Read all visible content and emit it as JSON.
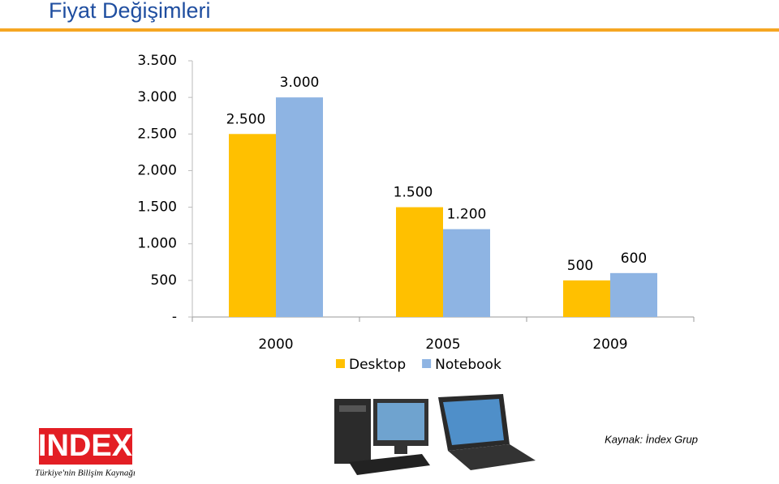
{
  "chart_data": {
    "type": "bar",
    "title": "Fiyat Değişimleri",
    "categories": [
      "2000",
      "2005",
      "2009"
    ],
    "series": [
      {
        "name": "Desktop",
        "color": "#ffc000",
        "values": [
          2500,
          1500,
          500
        ],
        "value_labels": [
          "2.500",
          "1.500",
          "500"
        ]
      },
      {
        "name": "Notebook",
        "color": "#8eb4e3",
        "values": [
          3000,
          1200,
          600
        ],
        "value_labels": [
          "3.000",
          "1.200",
          "600"
        ]
      }
    ],
    "ylim": [
      0,
      3500
    ],
    "yticks": [
      {
        "value": 0,
        "label": "-"
      },
      500,
      {
        "value": 1000,
        "label": "1.000"
      },
      {
        "value": 1500,
        "label": "1.500"
      },
      {
        "value": 2000,
        "label": "2.000"
      },
      {
        "value": 2500,
        "label": "2.500"
      },
      {
        "value": 3000,
        "label": "3.000"
      },
      {
        "value": 3500,
        "label": "3.500"
      }
    ],
    "legend": "bottom",
    "grid": false
  },
  "logo": {
    "name": "INDEX",
    "tagline": "Türkiye'nin Bilişim Kaynağı"
  },
  "source": "Kaynak: İndex Grup"
}
